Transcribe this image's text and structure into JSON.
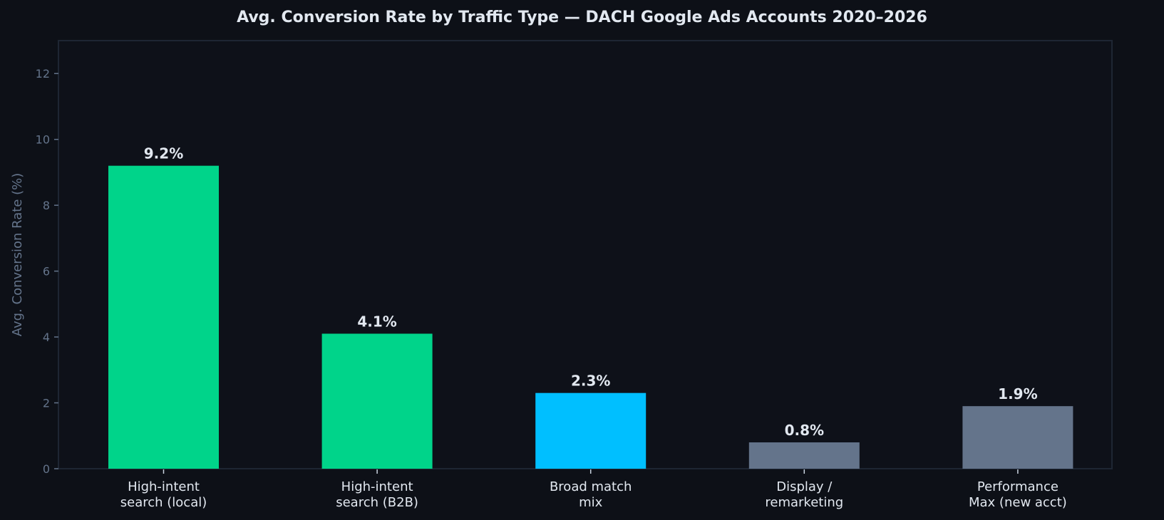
{
  "chart_data": {
    "type": "bar",
    "title": "Avg. Conversion Rate by Traffic Type — DACH Google Ads Accounts 2020–2026",
    "xlabel": "",
    "ylabel": "Avg. Conversion Rate (%)",
    "categories": [
      "High-intent\nsearch (local)",
      "High-intent\nsearch (B2B)",
      "Broad match\nmix",
      "Display /\nremarketing",
      "Performance\nMax (new acct)"
    ],
    "values": [
      9.2,
      4.1,
      2.3,
      0.8,
      1.9
    ],
    "data_labels": [
      "9.2%",
      "4.1%",
      "2.3%",
      "0.8%",
      "1.9%"
    ],
    "bar_colors": [
      "#00d48a",
      "#00d48a",
      "#00bfff",
      "#64748b",
      "#64748b"
    ],
    "ylim": [
      0,
      13
    ],
    "yticks": [
      0,
      2,
      4,
      6,
      8,
      10,
      12
    ],
    "grid": false,
    "legend": "none"
  },
  "colors": {
    "background": "#0d1017",
    "plot_background": "#0e1119",
    "axis": "#1e2633",
    "tick_label": "#64748b",
    "text": "#e2e8f0"
  }
}
